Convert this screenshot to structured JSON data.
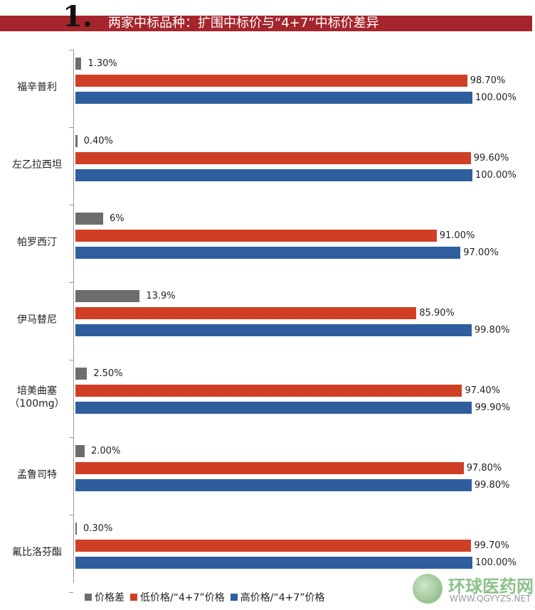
{
  "header": {
    "number": "1.",
    "title": "两家中标品种：扩围中标价与“4+7”中标价差异"
  },
  "chart_data": {
    "type": "bar",
    "title": "两家中标品种：扩围中标价与“4+7”中标价差异",
    "categories": [
      "福辛普利",
      "左乙拉西坦",
      "帕罗西汀",
      "伊马替尼",
      "培美曲塞（100mg）",
      "孟鲁司特",
      "氟比洛芬酯"
    ],
    "category_lines": [
      [
        "福辛普利"
      ],
      [
        "左乙拉西坦"
      ],
      [
        "帕罗西汀"
      ],
      [
        "伊马替尼"
      ],
      [
        "培美曲塞",
        "（100mg）"
      ],
      [
        "孟鲁司特"
      ],
      [
        "氟比洛芬酯"
      ]
    ],
    "series": [
      {
        "name": "价格差",
        "color": "#6d6d6d",
        "values": [
          1.3,
          0.4,
          6,
          13.9,
          2.5,
          2.0,
          0.3
        ],
        "labels": [
          "1.30%",
          "0.40%",
          "6%",
          "13.9%",
          "2.50%",
          "2.00%",
          "0.30%"
        ]
      },
      {
        "name": "低价格/“4+7”价格",
        "color": "#cf3f26",
        "values": [
          98.7,
          99.6,
          91.0,
          85.9,
          97.4,
          97.8,
          99.7
        ],
        "labels": [
          "98.70%",
          "99.60%",
          "91.00%",
          "85.90%",
          "97.40%",
          "97.80%",
          "99.70%"
        ]
      },
      {
        "name": "高价格/“4+7”价格",
        "color": "#2f5e9e",
        "values": [
          100,
          100,
          97,
          99.8,
          99.9,
          99.8,
          100
        ],
        "labels": [
          "100.00%",
          "100.00%",
          "97.00%",
          "99.80%",
          "99.90%",
          "99.80%",
          "100.00%"
        ]
      }
    ],
    "legend": "bottom",
    "unit": "%"
  },
  "watermark": {
    "cn": "环球医药网",
    "en": "WWW.QGYYZS.NET",
    "mark": "®"
  }
}
